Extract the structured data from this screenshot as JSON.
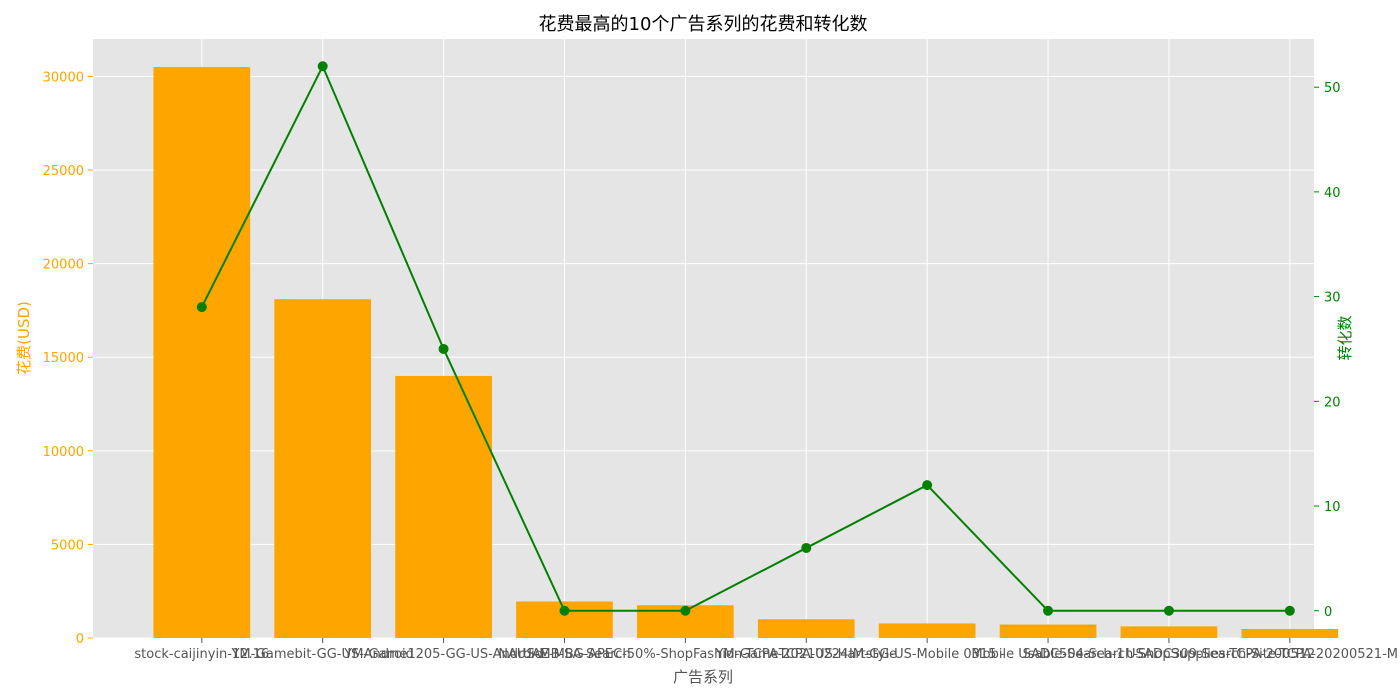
{
  "chart_data": {
    "type": "bar",
    "title": "花费最高的10个广告系列的花费和转化数",
    "xlabel": "广告系列",
    "ylabel_left": "花费(USD)",
    "ylabel_right": "转化数",
    "categories": [
      "stock-caijinyin-12.16",
      "YM-Gamebit-GG-US-Android",
      "YM-Game1205-GG-US-Android",
      "NAUS-MB-SA-Search",
      "UAE-MBG-APEC-50%-ShopFashion-TCPA-20210224",
      "YM-GameTCPA-US-Hartstyle",
      "IM-GG-US-Mobile  0315 -",
      "Mobile Usable-Search-1",
      "SADC504-Search-ShopSupplies-TCPA-200512",
      "USADC309-Search-Site-TCPA-20200521-M"
    ],
    "series": [
      {
        "name": "",
        "kind": "bar",
        "axis": "left",
        "color": "#FFA500",
        "values": [
          30500,
          18100,
          14000,
          1950,
          1750,
          1000,
          780,
          720,
          620,
          480
        ]
      },
      {
        "name": "",
        "kind": "line",
        "axis": "right",
        "color": "#008000",
        "values": [
          29,
          52,
          25,
          0,
          0,
          6,
          12,
          0,
          0,
          0
        ]
      }
    ],
    "ylim_left": [
      0,
      32000
    ],
    "ylim_right": [
      -2.6,
      54.6
    ],
    "yticks_left": [
      0,
      5000,
      10000,
      15000,
      20000,
      25000,
      30000
    ],
    "yticks_right": [
      0,
      10,
      20,
      30,
      40,
      50
    ],
    "grid": true,
    "legend": "none"
  },
  "colors": {
    "bar": "#FFA500",
    "line": "#008000",
    "plot_background": "#E5E5E5",
    "grid": "#FFFFFF"
  }
}
